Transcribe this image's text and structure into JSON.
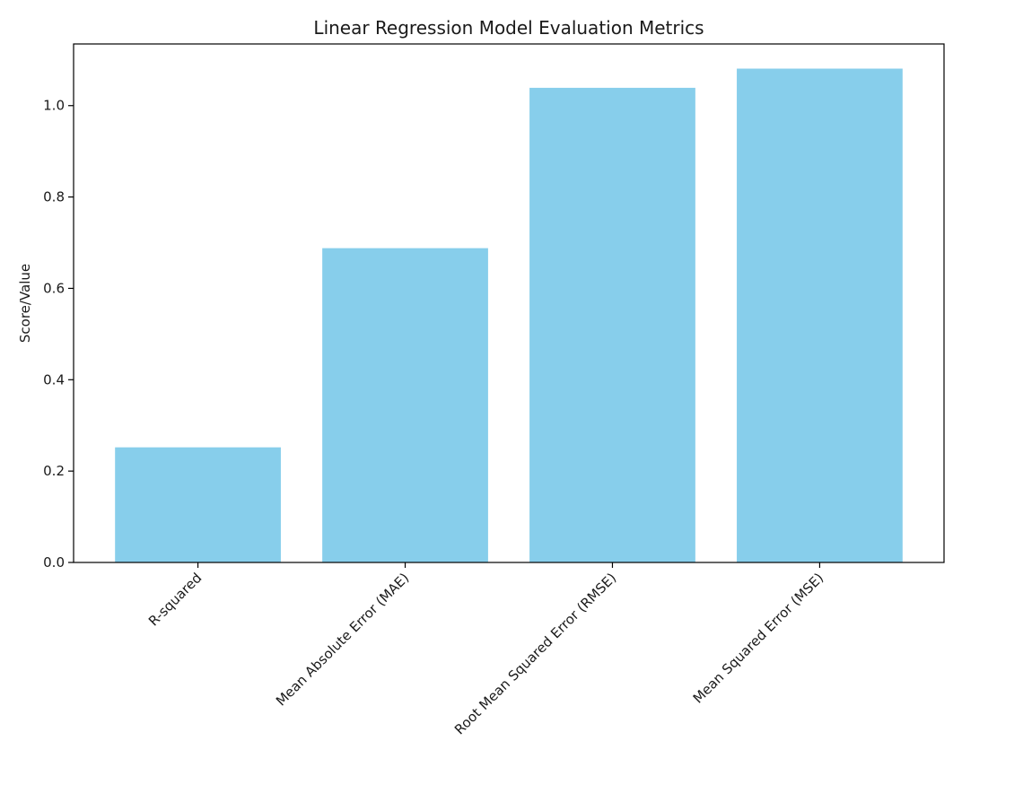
{
  "chart_data": {
    "type": "bar",
    "title": "Linear Regression Model Evaluation Metrics",
    "xlabel": "",
    "ylabel": "Score/Value",
    "categories": [
      "R-squared",
      "Mean Absolute Error (MAE)",
      "Root Mean Squared Error (RMSE)",
      "Mean Squared Error (MSE)"
    ],
    "values": [
      0.252,
      0.688,
      1.039,
      1.081
    ],
    "ylim": [
      0,
      1.135
    ],
    "yticks": [
      0.0,
      0.2,
      0.4,
      0.6,
      0.8,
      1.0
    ],
    "ytick_labels": [
      "0.0",
      "0.2",
      "0.4",
      "0.6",
      "0.8",
      "1.0"
    ],
    "bar_color": "#87ceeb",
    "xtick_rotation_deg": 45,
    "grid": false,
    "legend": "none"
  }
}
